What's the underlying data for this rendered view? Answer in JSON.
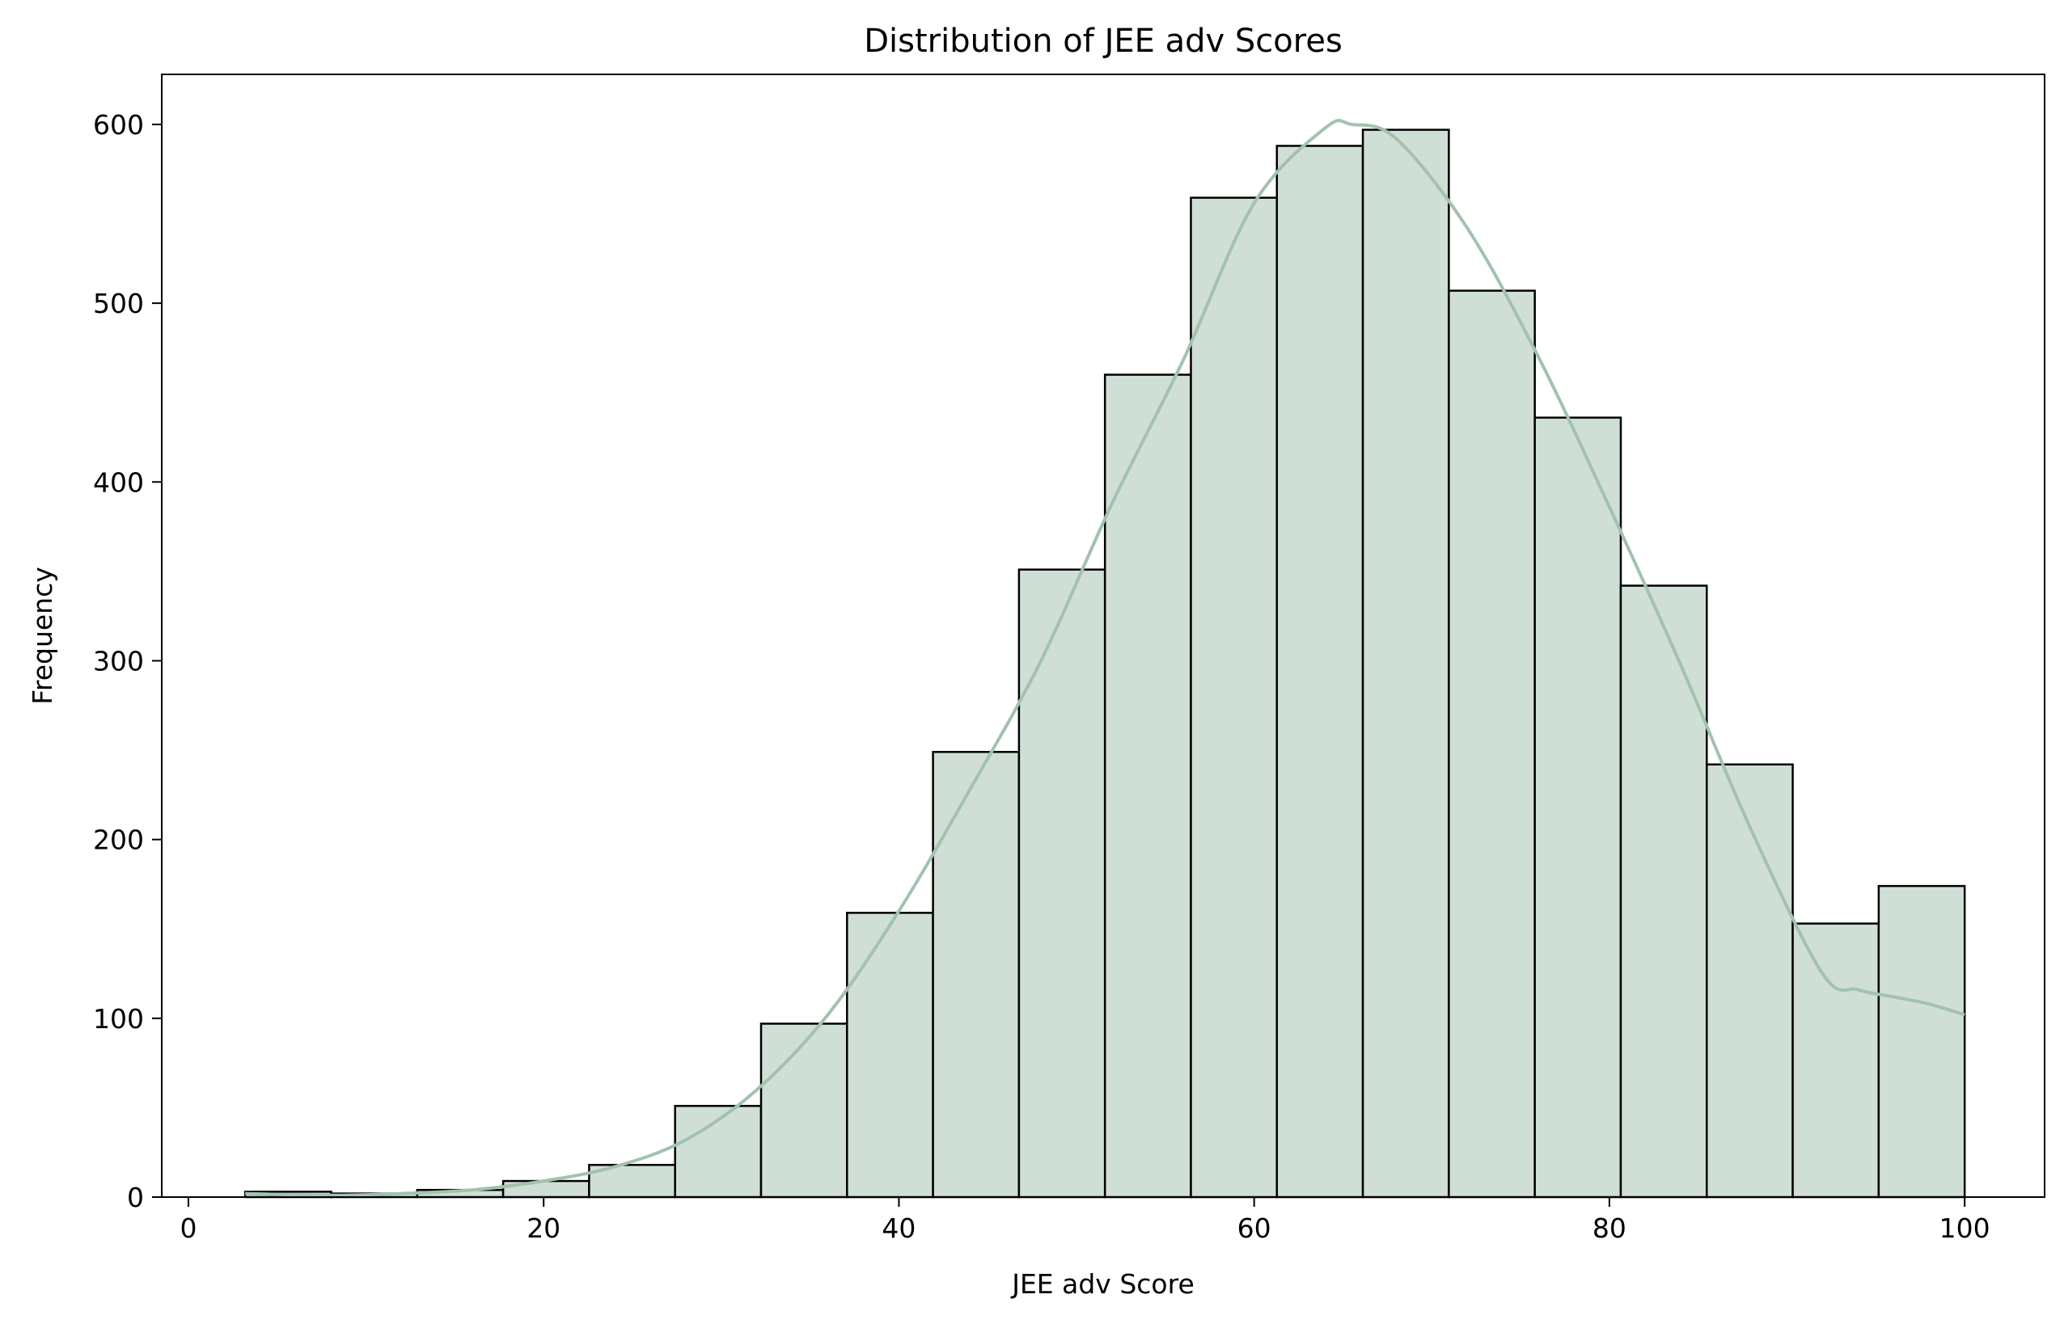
{
  "chart_data": {
    "type": "bar",
    "title": "Distribution of JEE adv Scores",
    "xlabel": "JEE adv Score",
    "ylabel": "Frequency",
    "xlim": [
      -1.5,
      104.5
    ],
    "ylim": [
      0,
      628
    ],
    "xticks": [
      0,
      20,
      40,
      60,
      80,
      100
    ],
    "yticks": [
      0,
      100,
      200,
      300,
      400,
      500,
      600
    ],
    "bin_edges": [
      3.2,
      8.04,
      12.88,
      17.72,
      22.56,
      27.4,
      32.24,
      37.08,
      41.92,
      46.76,
      51.6,
      56.44,
      61.28,
      66.12,
      70.96,
      75.8,
      80.64,
      85.48,
      90.32,
      95.16,
      100.0
    ],
    "values": [
      3,
      2,
      4,
      9,
      18,
      51,
      97,
      159,
      249,
      351,
      460,
      559,
      588,
      597,
      507,
      436,
      342,
      242,
      153,
      174
    ],
    "kde": {
      "x": [
        3.2,
        8,
        12,
        16,
        20,
        24,
        28,
        32,
        36,
        40,
        44,
        48,
        52,
        56,
        60,
        64,
        65.5,
        68,
        72,
        76,
        80,
        84,
        88,
        92,
        94,
        96,
        98,
        100
      ],
      "y": [
        2,
        1,
        2,
        4,
        9,
        17,
        32,
        60,
        102,
        160,
        228,
        300,
        388,
        468,
        556,
        598,
        600,
        592,
        542,
        470,
        386,
        298,
        205,
        125,
        116,
        112,
        108,
        102
      ]
    },
    "grid": false,
    "legend": "none",
    "colors": {
      "bar_fill": "#cfdfd5",
      "bar_edge": "#000000",
      "kde_line": "#a2c2ad",
      "axis": "#000000"
    }
  }
}
